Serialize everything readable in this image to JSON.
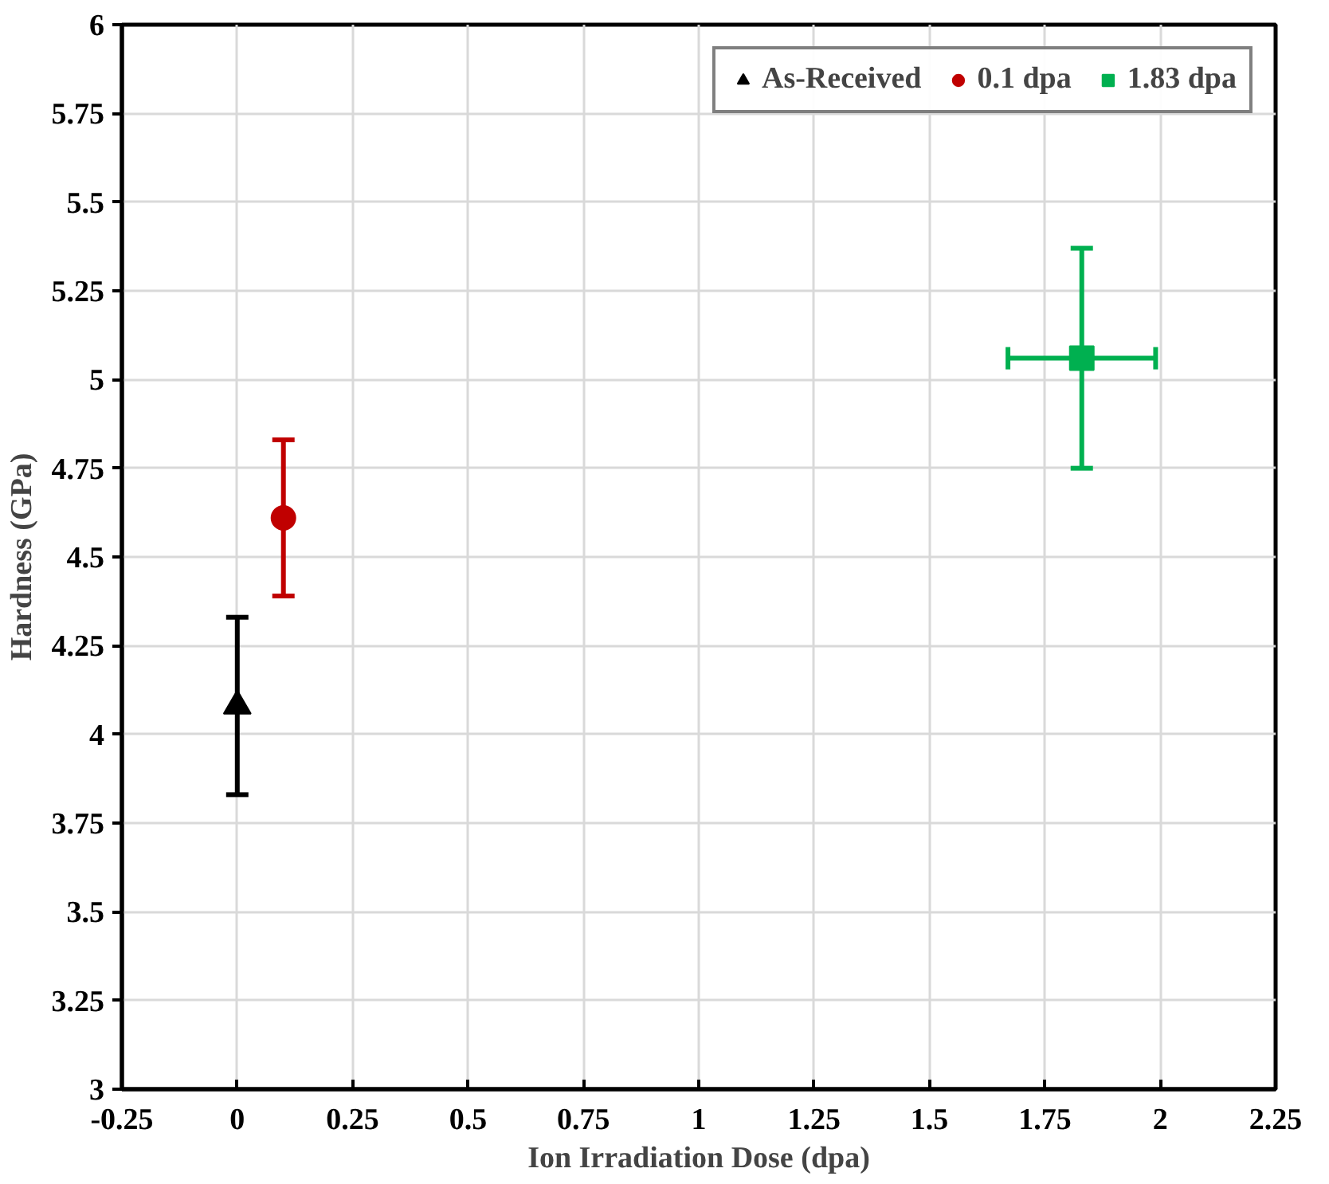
{
  "chart_data": {
    "type": "scatter",
    "xlabel": "Ion Irradiation Dose (dpa)",
    "ylabel": "Hardness (GPa)",
    "xlim": [
      -0.25,
      2.25
    ],
    "xticks": [
      -0.25,
      0,
      0.25,
      0.5,
      0.75,
      1,
      1.25,
      1.5,
      1.75,
      2,
      2.25
    ],
    "ylim": [
      3,
      6
    ],
    "yticks": [
      3,
      3.25,
      3.5,
      3.75,
      4,
      4.25,
      4.5,
      4.75,
      5,
      5.25,
      5.5,
      5.75,
      6
    ],
    "grid": true,
    "legend": "top right",
    "series": [
      {
        "name": "As-Received",
        "color": "#000000",
        "marker": "triangle",
        "x": [
          0
        ],
        "values": [
          4.08
        ],
        "errors": [
          0.25
        ]
      },
      {
        "name": "0.1 dpa",
        "color": "#c00000",
        "marker": "circle",
        "x": [
          0.1
        ],
        "values": [
          4.61
        ],
        "errors": [
          0.22
        ]
      },
      {
        "name": "1.83 dpa",
        "color": "#00b050",
        "marker": "square",
        "x": [
          1.83
        ],
        "values": [
          5.06
        ],
        "errors": [
          0.31
        ],
        "xerrors": [
          0.16
        ]
      }
    ]
  }
}
